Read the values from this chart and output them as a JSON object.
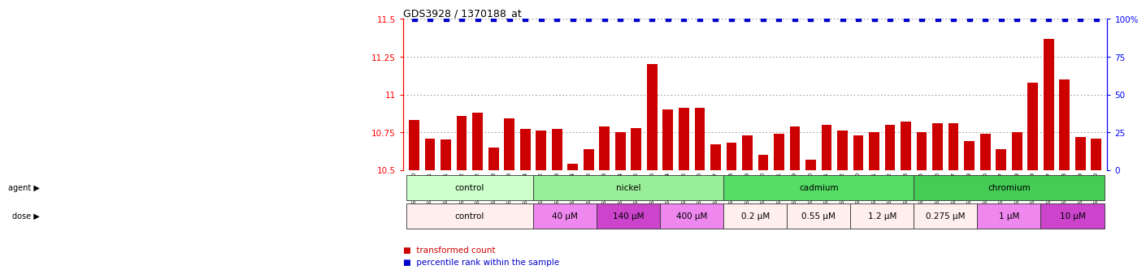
{
  "title": "GDS3928 / 1370188_at",
  "samples": [
    "GSM782280",
    "GSM782281",
    "GSM782291",
    "GSM782292",
    "GSM782302",
    "GSM782303",
    "GSM782313",
    "GSM782314",
    "GSM782282",
    "GSM782293",
    "GSM782304",
    "GSM782315",
    "GSM782283",
    "GSM782294",
    "GSM782305",
    "GSM782316",
    "GSM782284",
    "GSM782295",
    "GSM782306",
    "GSM782317",
    "GSM782288",
    "GSM782299",
    "GSM782310",
    "GSM782321",
    "GSM782289",
    "GSM782300",
    "GSM782311",
    "GSM782322",
    "GSM782290",
    "GSM782301",
    "GSM782312",
    "GSM782323",
    "GSM782285",
    "GSM782296",
    "GSM782307",
    "GSM782318",
    "GSM782286",
    "GSM782297",
    "GSM782308",
    "GSM782319",
    "GSM782287",
    "GSM782298",
    "GSM782309",
    "GSM782320"
  ],
  "values": [
    10.83,
    10.71,
    10.7,
    10.86,
    10.88,
    10.65,
    10.84,
    10.77,
    10.76,
    10.77,
    10.54,
    10.64,
    10.79,
    10.75,
    10.78,
    11.2,
    10.9,
    10.91,
    10.91,
    10.67,
    10.68,
    10.73,
    10.6,
    10.74,
    10.79,
    10.57,
    10.8,
    10.76,
    10.73,
    10.75,
    10.8,
    10.82,
    10.75,
    10.81,
    10.81,
    10.69,
    10.74,
    10.64,
    10.75,
    11.08,
    11.37,
    11.1,
    10.72,
    10.71
  ],
  "ylim_left": [
    10.5,
    11.5
  ],
  "ylim_right": [
    0,
    100
  ],
  "yticks_left": [
    10.5,
    10.75,
    11.0,
    11.25,
    11.5
  ],
  "ytick_labels_left": [
    "10.5",
    "10.75",
    "11",
    "11.25",
    "11.5"
  ],
  "yticks_right": [
    0,
    25,
    50,
    75,
    100
  ],
  "ytick_labels_right": [
    "0",
    "25",
    "50",
    "75",
    "100%"
  ],
  "bar_color": "#cc0000",
  "percentile_color": "#0000cc",
  "background_color": "#ffffff",
  "agent_groups": [
    {
      "label": "control",
      "start": 0,
      "end": 7,
      "color": "#ccffcc"
    },
    {
      "label": "nickel",
      "start": 8,
      "end": 19,
      "color": "#99ee99"
    },
    {
      "label": "cadmium",
      "start": 20,
      "end": 31,
      "color": "#55dd66"
    },
    {
      "label": "chromium",
      "start": 32,
      "end": 43,
      "color": "#44cc55"
    }
  ],
  "dose_groups": [
    {
      "label": "control",
      "start": 0,
      "end": 7,
      "color": "#ffeeee"
    },
    {
      "label": "40 μM",
      "start": 8,
      "end": 11,
      "color": "#ee88ee"
    },
    {
      "label": "140 μM",
      "start": 12,
      "end": 15,
      "color": "#cc44cc"
    },
    {
      "label": "400 μM",
      "start": 16,
      "end": 19,
      "color": "#ee88ee"
    },
    {
      "label": "0.2 μM",
      "start": 20,
      "end": 23,
      "color": "#ffeeee"
    },
    {
      "label": "0.55 μM",
      "start": 24,
      "end": 27,
      "color": "#ffeeee"
    },
    {
      "label": "1.2 μM",
      "start": 28,
      "end": 31,
      "color": "#ffeeee"
    },
    {
      "label": "0.275 μM",
      "start": 32,
      "end": 35,
      "color": "#ffeeee"
    },
    {
      "label": "1 μM",
      "start": 36,
      "end": 39,
      "color": "#ee88ee"
    },
    {
      "label": "10 μM",
      "start": 40,
      "end": 43,
      "color": "#cc44cc"
    }
  ]
}
